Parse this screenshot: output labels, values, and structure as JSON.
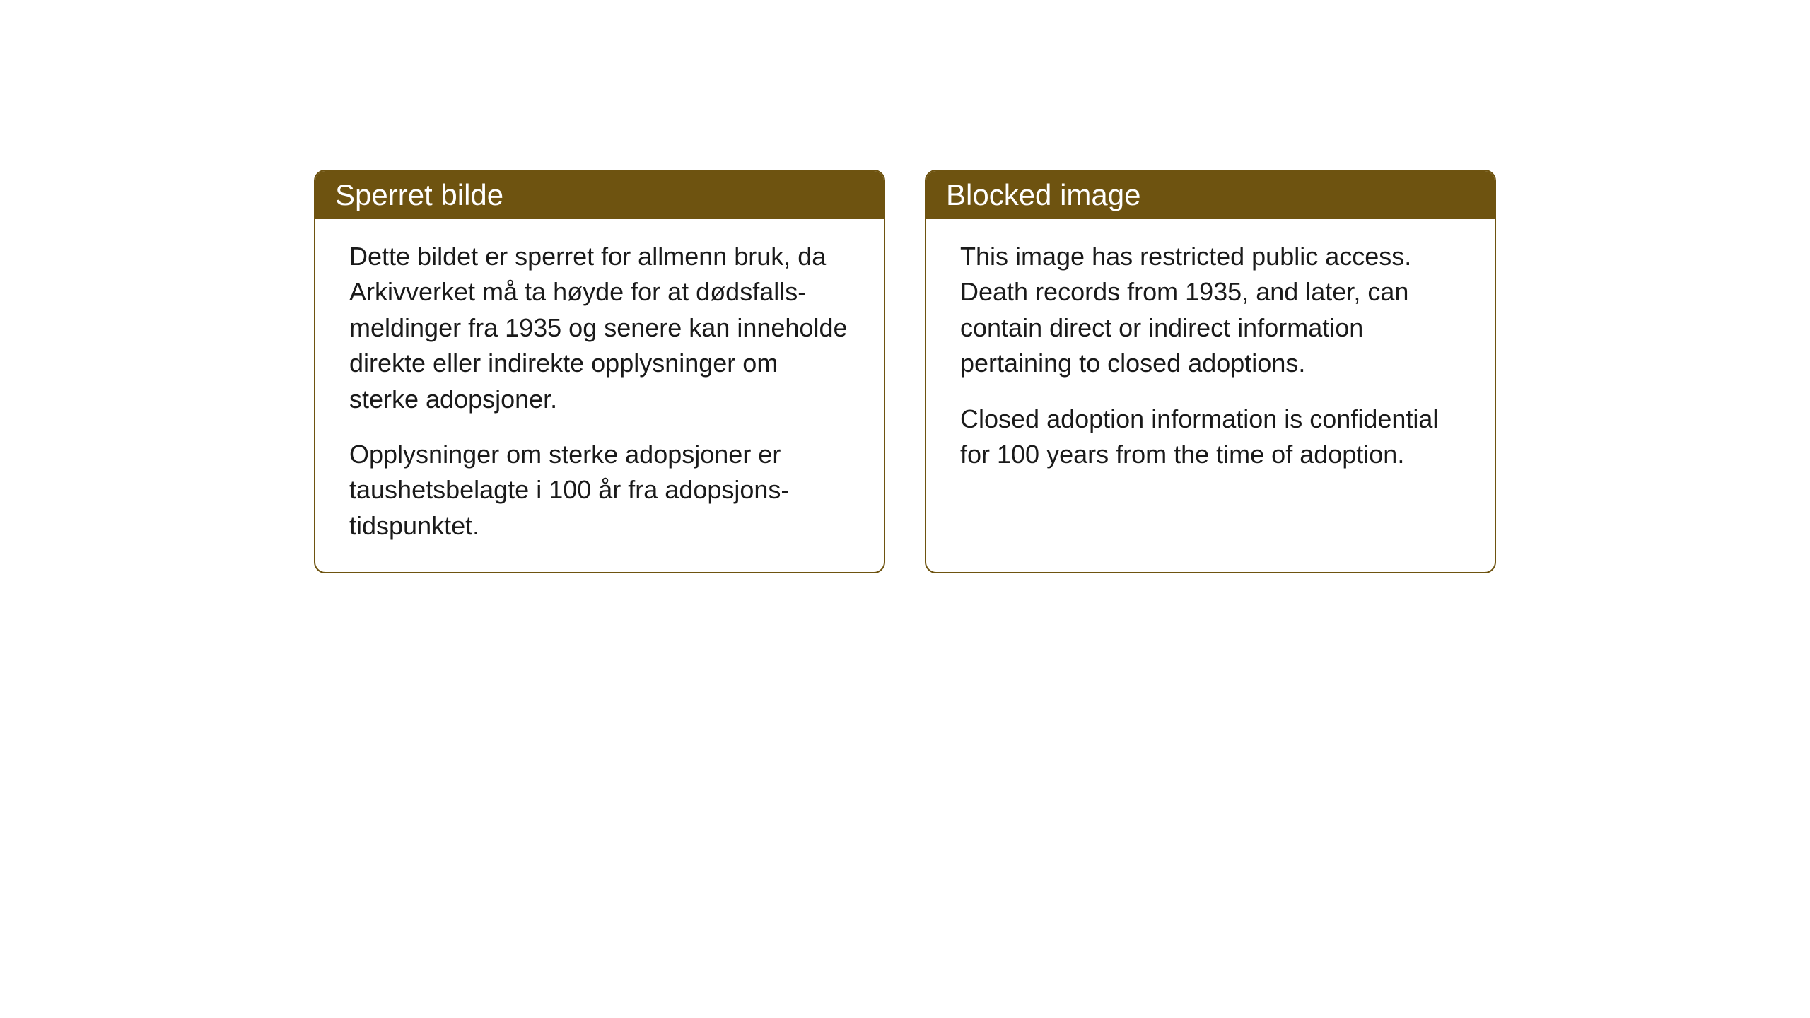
{
  "cards": {
    "norwegian": {
      "title": "Sperret bilde",
      "paragraph1": "Dette bildet er sperret for allmenn bruk, da Arkivverket må ta høyde for at dødsfalls-meldinger fra 1935 og senere kan inneholde direkte eller indirekte opplysninger om sterke adopsjoner.",
      "paragraph2": "Opplysninger om sterke adopsjoner er taushetsbelagte i 100 år fra adopsjons-tidspunktet."
    },
    "english": {
      "title": "Blocked image",
      "paragraph1": "This image has restricted public access. Death records from 1935, and later, can contain direct or indirect information pertaining to closed adoptions.",
      "paragraph2": "Closed adoption information is confidential for 100 years from the time of adoption."
    }
  },
  "styling": {
    "header_background": "#6e5310",
    "header_text_color": "#ffffff",
    "border_color": "#6e5310",
    "body_text_color": "#1a1a1a",
    "page_background": "#ffffff",
    "title_fontsize": 42,
    "body_fontsize": 36,
    "border_radius": 16,
    "border_width": 2
  }
}
